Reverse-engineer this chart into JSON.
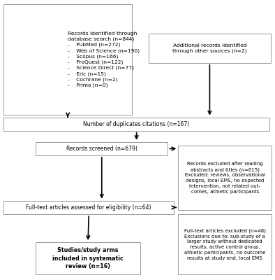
{
  "bg_color": "#ffffff",
  "box_color": "#ffffff",
  "box_edge_color": "#999999",
  "arrow_color": "#000000",
  "text_color": "#000000",
  "font_size": 5.5,
  "box1_text": "Records identified through\ndatabase search (n=844)\n-    PubMed (n=272)\n-    Web of Science (n=190)\n-    Scopus (n=166)\n-    ProQuest (n=122)\n-    Science Direct (n=77)\n-    Eric (n=15)\n-    Cochrane (n=2)\n-    Primo (n=0)",
  "box2_text": "Additional records identified\nthrough other sources (n=2)",
  "box3_text": "Number of duplicates citations (n=167)",
  "box4_text": "Records screened (n=679)",
  "box5_text": "Records excluded after reading\nabstracts and titles (n=615)\nExcluded: reviews, observational\ndesigns, local EMS, no expected\nintervention, not related out-\ncomes, athletic participants",
  "box6_text": "Full-text articles assessed for eligibility (n=64)",
  "box7_text": "Full-text articles excluded (n=48)\nExclusions due to: sub-study of a\nlarger study without dedicated\nresults, active control group,\nathletic participants, no outcome\nresults at study end, local EMS",
  "box8_text": "Studies/study arms\nincluded in systematic\nreview (n=16)"
}
